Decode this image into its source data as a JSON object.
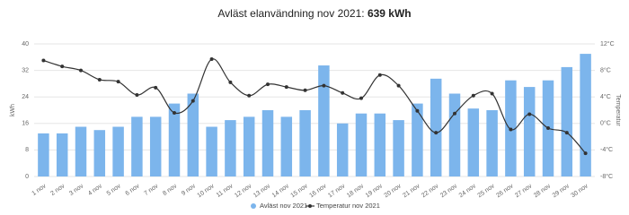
{
  "chart_data": {
    "type": "bar-line",
    "title": "Avläst elanvändning nov 2021:",
    "title_value": "639 kWh",
    "y_label": "kWh",
    "y2_label": "Temperatur",
    "categories": [
      "1 nov",
      "2 nov",
      "3 nov",
      "4 nov",
      "5 nov",
      "6 nov",
      "7 nov",
      "8 nov",
      "9 nov",
      "10 nov",
      "11 nov",
      "12 nov",
      "13 nov",
      "14 nov",
      "15 nov",
      "16 nov",
      "17 nov",
      "18 nov",
      "19 nov",
      "20 nov",
      "21 nov",
      "22 nov",
      "23 nov",
      "24 nov",
      "25 nov",
      "26 nov",
      "27 nov",
      "28 nov",
      "29 nov",
      "30 nov"
    ],
    "series": [
      {
        "name": "Avläst nov 2021",
        "type": "bar",
        "color": "#7cb5ec",
        "values": [
          13,
          13,
          15,
          14,
          15,
          18,
          18,
          22,
          25,
          15,
          17,
          18,
          20,
          18,
          20,
          33.5,
          16,
          19,
          19,
          17,
          22,
          29.5,
          25,
          20.5,
          20,
          29,
          27,
          29,
          33,
          37
        ]
      },
      {
        "name": "Temperatur nov 2021",
        "type": "line",
        "axis": "y2",
        "color": "#333333",
        "values": [
          9.5,
          8.6,
          8,
          6.6,
          6.3,
          4.3,
          5.4,
          1.6,
          3.4,
          9.7,
          6.2,
          4.2,
          5.9,
          5.5,
          5,
          5.7,
          4.6,
          3.8,
          7.3,
          5.7,
          1.9,
          -1.4,
          1.5,
          4.2,
          4.5,
          -0.9,
          1.4,
          -0.7,
          -1.4,
          -4.5
        ]
      }
    ],
    "ylim": [
      0,
      40
    ],
    "yticks": [
      0,
      8,
      16,
      24,
      32,
      40
    ],
    "y2lim": [
      -8,
      12
    ],
    "y2ticks": [
      {
        "value": -8,
        "label": "-8°C"
      },
      {
        "value": -4,
        "label": "-4°C"
      },
      {
        "value": 0,
        "label": "0°C"
      },
      {
        "value": 4,
        "label": "4°C"
      },
      {
        "value": 8,
        "label": "8°C"
      },
      {
        "value": 12,
        "label": "12°C"
      }
    ],
    "grid": true
  }
}
